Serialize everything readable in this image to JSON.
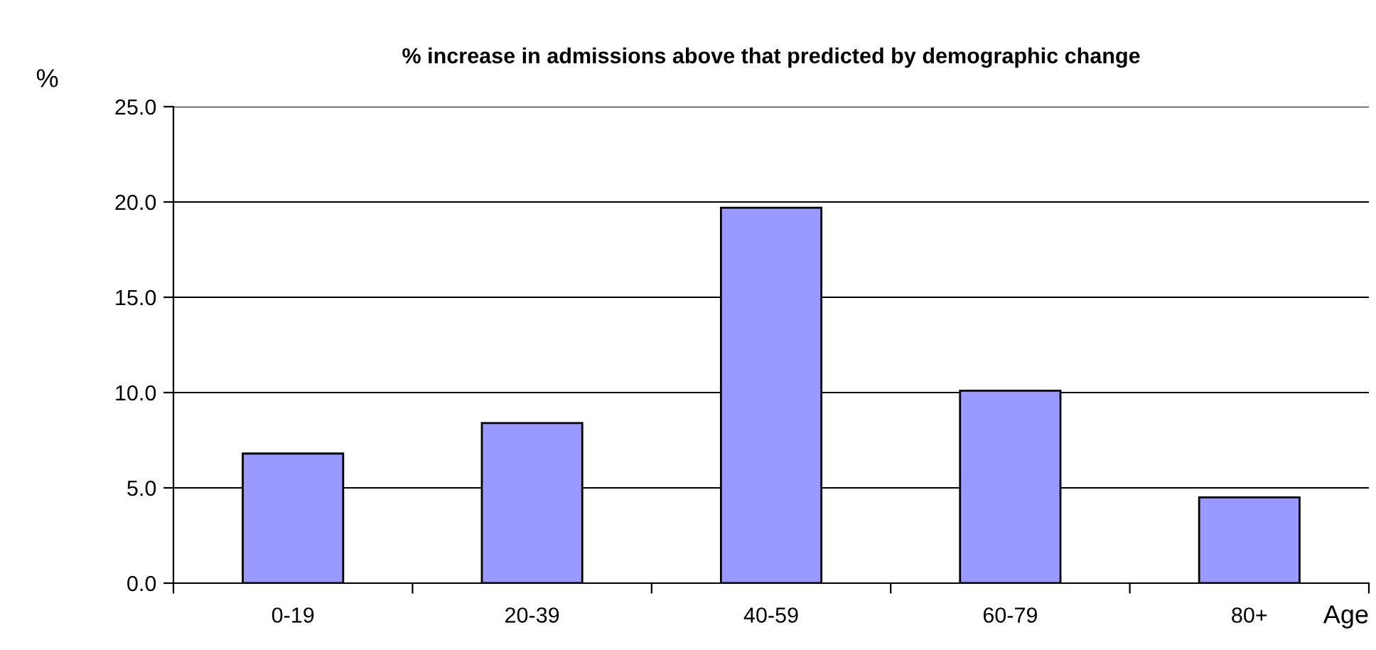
{
  "chart_data": {
    "type": "bar",
    "title": "% increase in admissions above that predicted by demographic change",
    "ylabel": "%",
    "xlabel": "Age",
    "categories": [
      "0-19",
      "20-39",
      "40-59",
      "60-79",
      "80+"
    ],
    "values": [
      6.8,
      8.4,
      19.7,
      10.1,
      4.5
    ],
    "color": "#9999ff",
    "ylim": [
      0,
      25
    ],
    "yticks": [
      {
        "value": 0,
        "label": "0.0"
      },
      {
        "value": 5,
        "label": "5.0"
      },
      {
        "value": 10,
        "label": "10.0"
      },
      {
        "value": 15,
        "label": "15.0"
      },
      {
        "value": 20,
        "label": "20.0"
      },
      {
        "value": 25,
        "label": "25.0"
      }
    ],
    "grid": "y"
  }
}
